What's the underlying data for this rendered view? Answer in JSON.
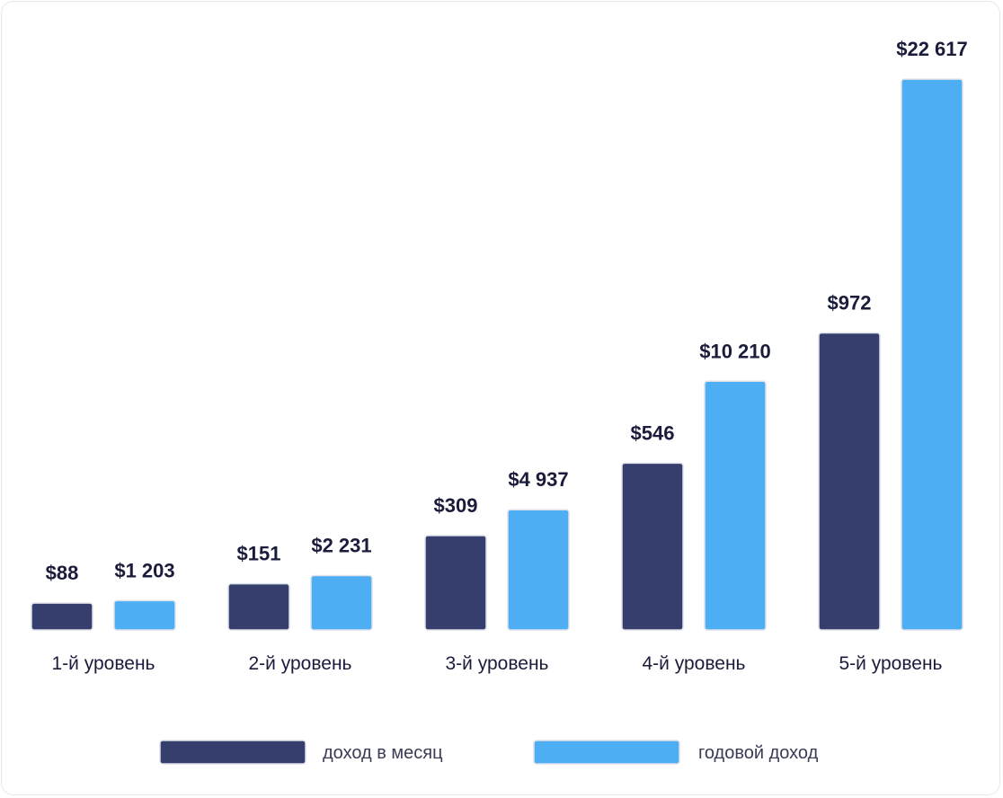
{
  "chart_data": {
    "type": "bar",
    "categories": [
      "1-й уровень",
      "2-й уровень",
      "3-й уровень",
      "4-й уровень",
      "5-й уровень"
    ],
    "series": [
      {
        "name": "доход в месяц",
        "color": "#363e6e",
        "values": [
          88,
          151,
          309,
          546,
          972
        ],
        "labels": [
          "$88",
          "$151",
          "$309",
          "$546",
          "$972"
        ]
      },
      {
        "name": "годовой доход",
        "color": "#4daef3",
        "values": [
          1203,
          2231,
          4937,
          10210,
          22617
        ],
        "labels": [
          "$1 203",
          "$2 231",
          "$4 937",
          "$10 210",
          "$22 617"
        ]
      }
    ],
    "scale_note": "per-series scaling",
    "legend": "bottom-center",
    "grid": false
  }
}
